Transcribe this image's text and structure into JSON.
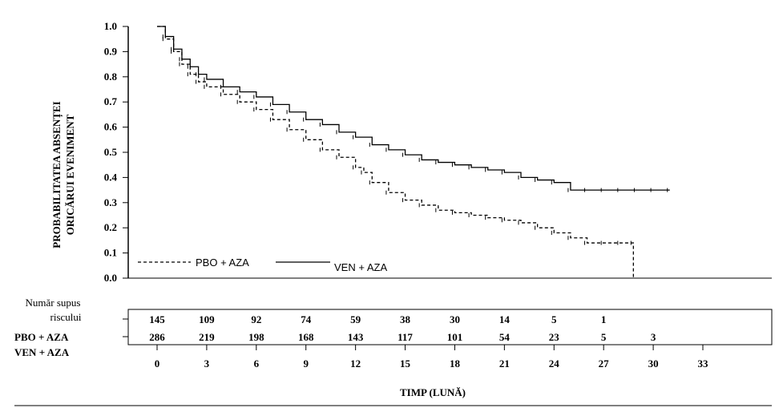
{
  "chart_data": {
    "type": "line",
    "subtype": "kaplan-meier",
    "ylabel_line1": "PROBABILITATEA ABSENȚEI",
    "ylabel_line2": "ORICĂRUI EVENIMENT",
    "xlabel": "TIMP (LUNĂ)",
    "ylim": [
      0,
      1.0
    ],
    "xlim": [
      0,
      33
    ],
    "yticks": [
      "0.0",
      "0.1",
      "0.2",
      "0.3",
      "0.4",
      "0.5",
      "0.6",
      "0.7",
      "0.8",
      "0.9",
      "1.0"
    ],
    "xticks": [
      "0",
      "3",
      "6",
      "9",
      "12",
      "15",
      "18",
      "21",
      "24",
      "27",
      "30",
      "33"
    ],
    "legend": {
      "placement": "bottom-left",
      "entries": [
        {
          "label": "PBO + AZA",
          "style": "dashed"
        },
        {
          "label": "VEN + AZA",
          "style": "solid"
        }
      ]
    },
    "series": [
      {
        "name": "PBO + AZA",
        "style": "dashed",
        "x": [
          0,
          0.5,
          1,
          1.5,
          2,
          2.5,
          3,
          4,
          5,
          6,
          7,
          8,
          9,
          10,
          11,
          12,
          12.5,
          13,
          14,
          15,
          16,
          17,
          18,
          19,
          20,
          21,
          22,
          23,
          24,
          25,
          26,
          27,
          28,
          28.8,
          28.8
        ],
        "y": [
          1.0,
          0.95,
          0.9,
          0.85,
          0.81,
          0.78,
          0.76,
          0.73,
          0.7,
          0.67,
          0.63,
          0.59,
          0.55,
          0.51,
          0.48,
          0.44,
          0.42,
          0.38,
          0.34,
          0.31,
          0.29,
          0.27,
          0.26,
          0.25,
          0.24,
          0.23,
          0.22,
          0.2,
          0.18,
          0.16,
          0.14,
          0.14,
          0.14,
          0.14,
          0.0
        ]
      },
      {
        "name": "VEN + AZA",
        "style": "solid",
        "x": [
          0,
          0.5,
          1,
          1.5,
          2,
          2.5,
          3,
          4,
          5,
          6,
          7,
          8,
          9,
          10,
          11,
          12,
          13,
          14,
          15,
          16,
          17,
          18,
          19,
          20,
          21,
          22,
          23,
          24,
          25,
          26,
          27,
          28,
          29,
          30,
          31
        ],
        "y": [
          1.0,
          0.96,
          0.91,
          0.87,
          0.84,
          0.81,
          0.79,
          0.76,
          0.74,
          0.72,
          0.69,
          0.66,
          0.63,
          0.61,
          0.58,
          0.56,
          0.53,
          0.51,
          0.49,
          0.47,
          0.46,
          0.45,
          0.44,
          0.43,
          0.42,
          0.4,
          0.39,
          0.38,
          0.35,
          0.35,
          0.35,
          0.35,
          0.35,
          0.35,
          0.35
        ]
      }
    ],
    "risk_table": {
      "title_line1": "Număr supus",
      "title_line2": "riscului",
      "times": [
        "0",
        "3",
        "6",
        "9",
        "12",
        "15",
        "18",
        "21",
        "24",
        "27",
        "30"
      ],
      "rows": [
        {
          "label": "PBO + AZA",
          "values": [
            "145",
            "109",
            "92",
            "74",
            "59",
            "38",
            "30",
            "14",
            "5",
            "1",
            ""
          ]
        },
        {
          "label": "VEN + AZA",
          "values": [
            "286",
            "219",
            "198",
            "168",
            "143",
            "117",
            "101",
            "54",
            "23",
            "5",
            "3"
          ]
        }
      ]
    }
  }
}
